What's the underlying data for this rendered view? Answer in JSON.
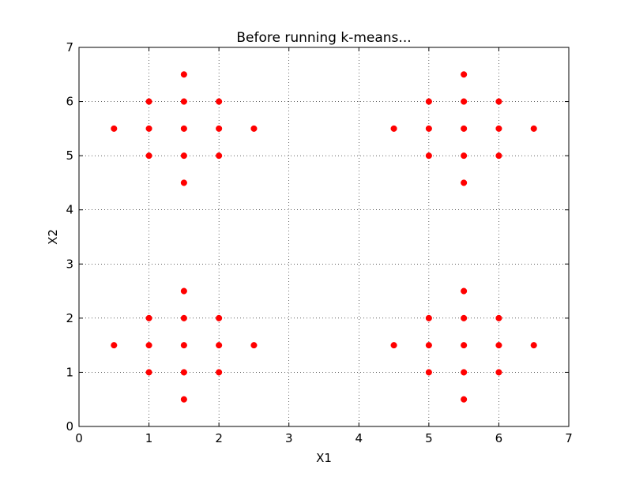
{
  "chart_data": {
    "type": "scatter",
    "title": "Before running k-means...",
    "xlabel": "X1",
    "ylabel": "X2",
    "xlim": [
      0,
      7
    ],
    "ylim": [
      0,
      7
    ],
    "xticks": [
      0,
      1,
      2,
      3,
      4,
      5,
      6,
      7
    ],
    "yticks": [
      0,
      1,
      2,
      3,
      4,
      5,
      6,
      7
    ],
    "grid": true,
    "grid_style": "dotted",
    "marker_color": "#ff0000",
    "points": [
      [
        1.5,
        6.5
      ],
      [
        1.0,
        6.0
      ],
      [
        1.5,
        6.0
      ],
      [
        2.0,
        6.0
      ],
      [
        0.5,
        5.5
      ],
      [
        1.0,
        5.5
      ],
      [
        1.5,
        5.5
      ],
      [
        2.0,
        5.5
      ],
      [
        2.5,
        5.5
      ],
      [
        1.0,
        5.0
      ],
      [
        1.5,
        5.0
      ],
      [
        2.0,
        5.0
      ],
      [
        1.5,
        4.5
      ],
      [
        5.5,
        6.5
      ],
      [
        5.0,
        6.0
      ],
      [
        5.5,
        6.0
      ],
      [
        6.0,
        6.0
      ],
      [
        4.5,
        5.5
      ],
      [
        5.0,
        5.5
      ],
      [
        5.5,
        5.5
      ],
      [
        6.0,
        5.5
      ],
      [
        6.5,
        5.5
      ],
      [
        5.0,
        5.0
      ],
      [
        5.5,
        5.0
      ],
      [
        6.0,
        5.0
      ],
      [
        5.5,
        4.5
      ],
      [
        1.5,
        2.5
      ],
      [
        1.0,
        2.0
      ],
      [
        1.5,
        2.0
      ],
      [
        2.0,
        2.0
      ],
      [
        0.5,
        1.5
      ],
      [
        1.0,
        1.5
      ],
      [
        1.5,
        1.5
      ],
      [
        2.0,
        1.5
      ],
      [
        2.5,
        1.5
      ],
      [
        1.0,
        1.0
      ],
      [
        1.5,
        1.0
      ],
      [
        2.0,
        1.0
      ],
      [
        1.5,
        0.5
      ],
      [
        5.5,
        2.5
      ],
      [
        5.0,
        2.0
      ],
      [
        5.5,
        2.0
      ],
      [
        6.0,
        2.0
      ],
      [
        4.5,
        1.5
      ],
      [
        5.0,
        1.5
      ],
      [
        5.5,
        1.5
      ],
      [
        6.0,
        1.5
      ],
      [
        6.5,
        1.5
      ],
      [
        5.0,
        1.0
      ],
      [
        5.5,
        1.0
      ],
      [
        6.0,
        1.0
      ],
      [
        5.5,
        0.5
      ]
    ]
  }
}
